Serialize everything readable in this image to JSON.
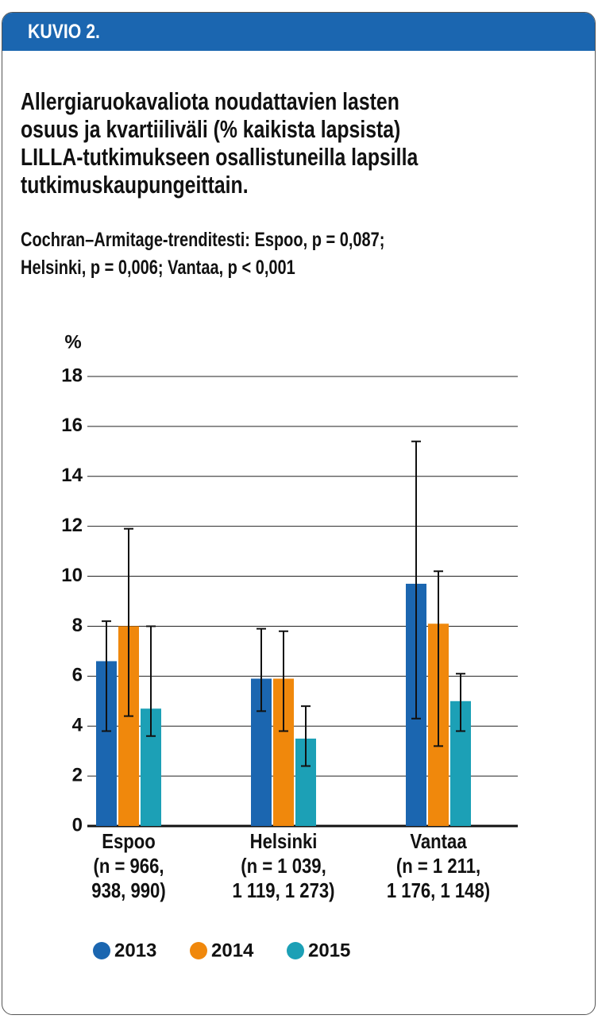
{
  "header": "KUVIO 2.",
  "chart_data": {
    "type": "bar",
    "title": "Allergiaruokavaliota noudattavien lasten\nosuus ja kvartiiliväli (% kaikista lapsista)\nLILLA-tutkimukseen osallistuneilla lapsilla\ntutkimuskaupungeittain.",
    "subtitle": "Cochran–Armitage-trenditesti: Espoo, p = 0,087;\nHelsinki, p = 0,006; Vantaa, p < 0,001",
    "y_label": "%",
    "categories": [
      "Espoo\n(n = 966,\n938, 990)",
      "Helsinki\n(n = 1 039,\n1 119, 1 273)",
      "Vantaa\n(n = 1 211,\n1 176, 1 148)"
    ],
    "series": [
      {
        "name": "2013",
        "color": "#1b66b0",
        "values": [
          6.6,
          5.9,
          9.7
        ],
        "lower": [
          3.8,
          4.6,
          4.3
        ],
        "upper": [
          8.2,
          7.9,
          15.4
        ]
      },
      {
        "name": "2014",
        "color": "#f0880c",
        "values": [
          8.0,
          5.9,
          8.1
        ],
        "lower": [
          4.4,
          3.8,
          3.2
        ],
        "upper": [
          11.9,
          7.8,
          10.2
        ]
      },
      {
        "name": "2015",
        "color": "#1ca0b6",
        "values": [
          4.7,
          3.5,
          5.0
        ],
        "lower": [
          3.6,
          2.4,
          3.8
        ],
        "upper": [
          8.0,
          4.8,
          6.1
        ]
      }
    ],
    "ylim": [
      0,
      18
    ],
    "yticks": [
      0,
      2,
      4,
      6,
      8,
      10,
      12,
      14,
      16,
      18
    ],
    "grid": true
  }
}
